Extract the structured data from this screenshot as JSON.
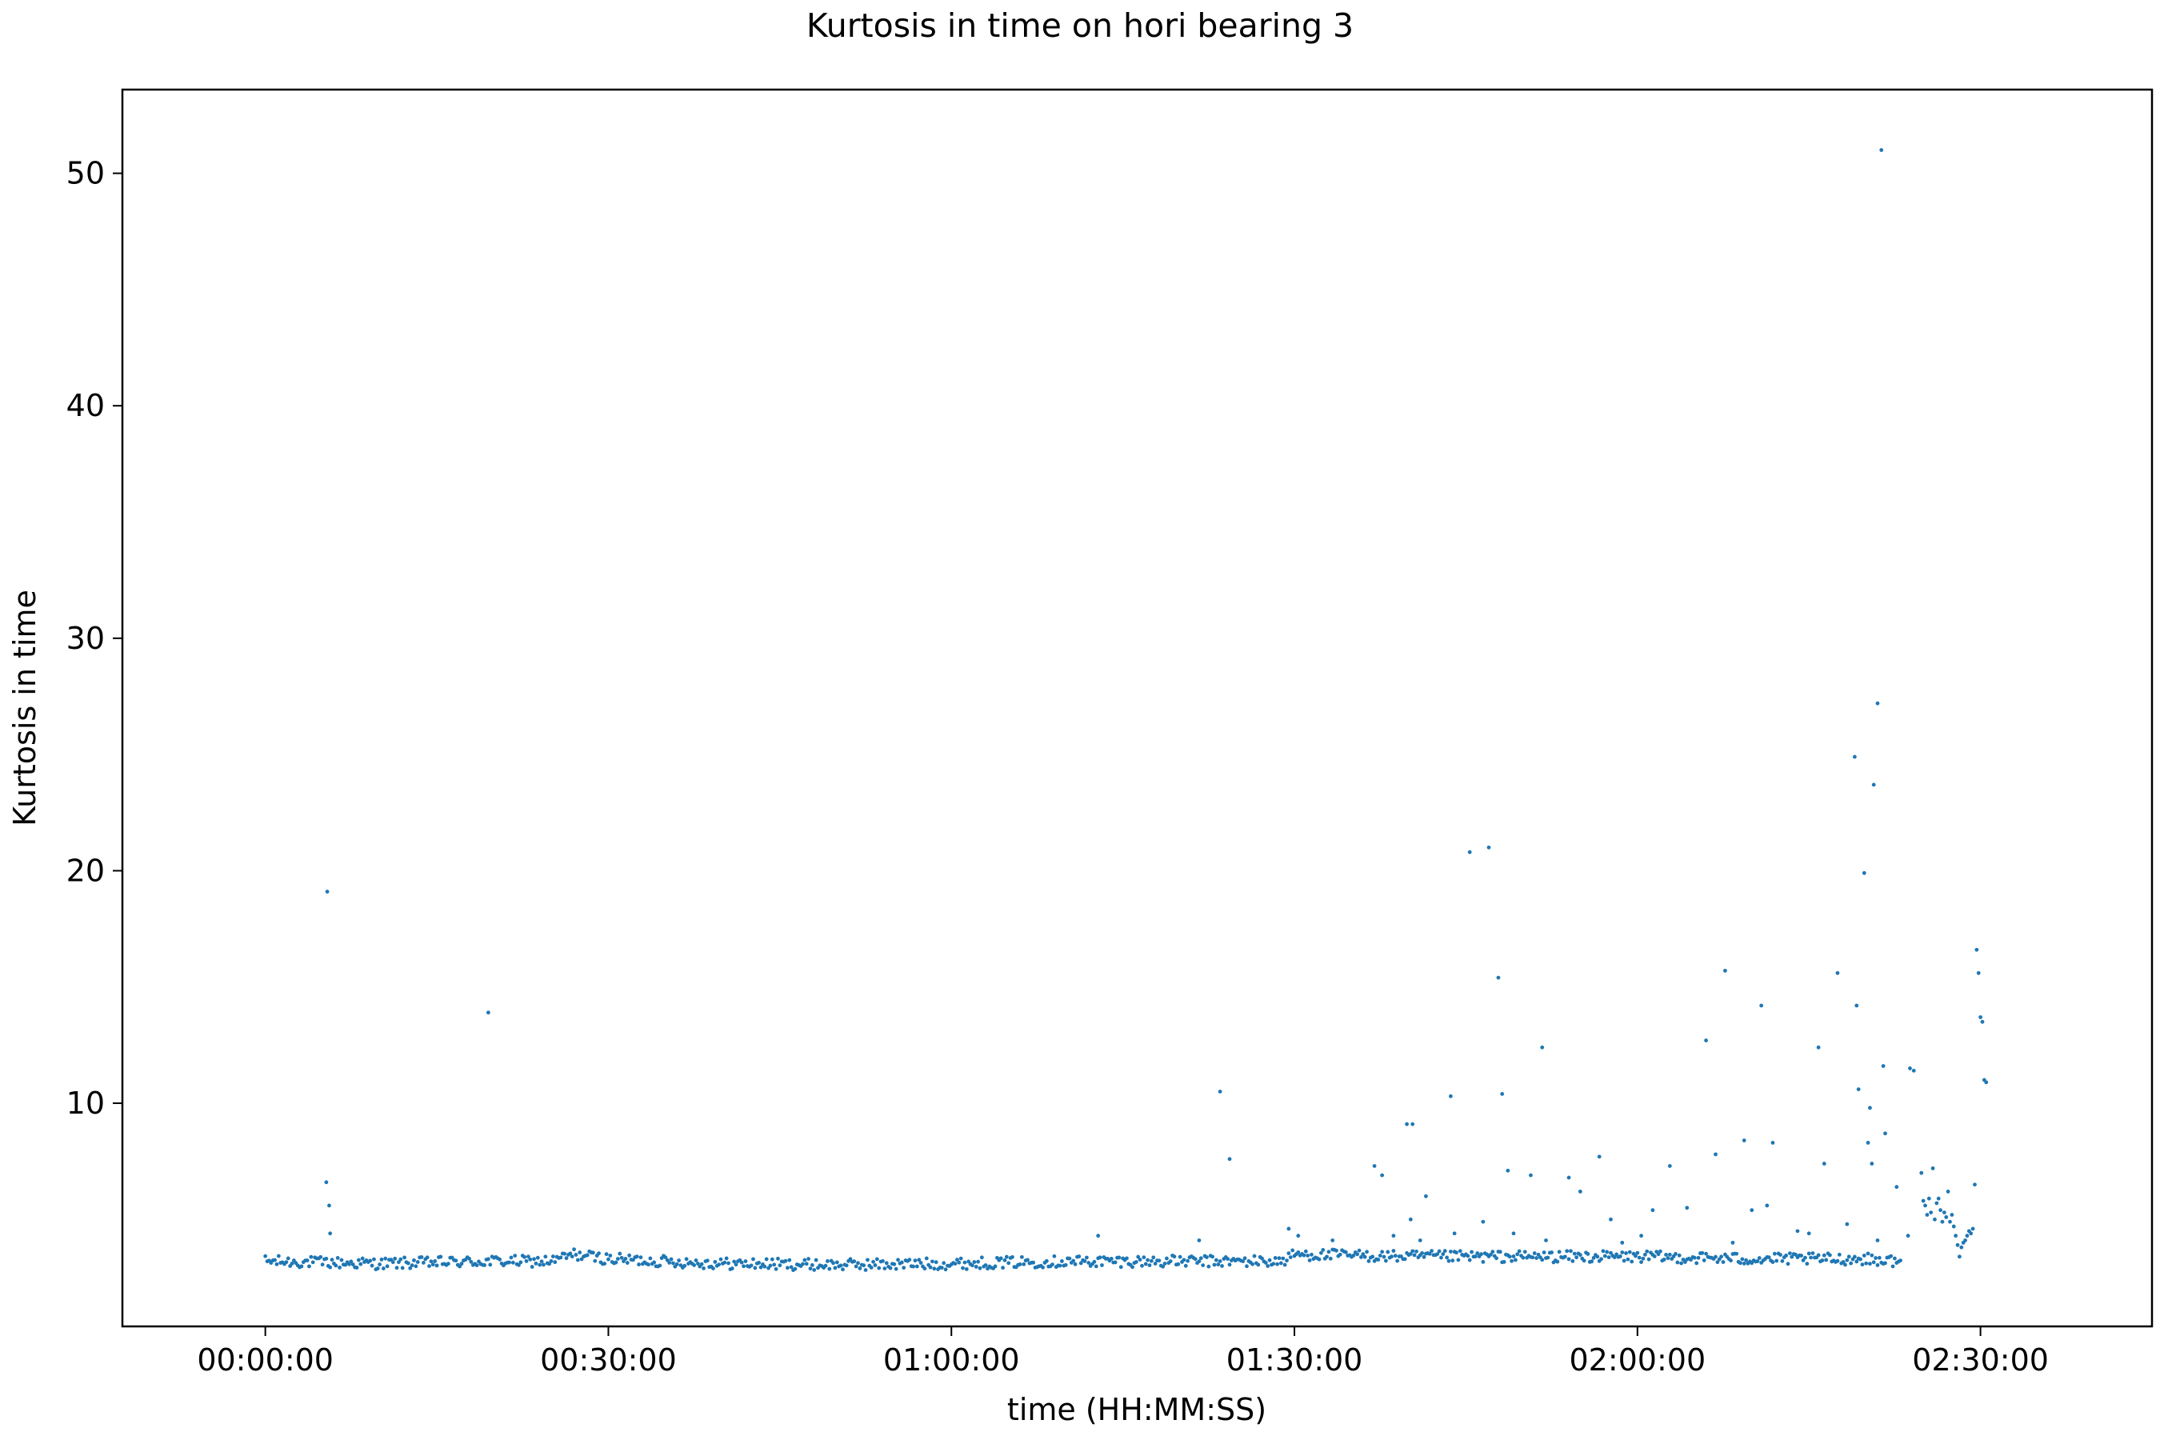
{
  "chart_data": {
    "type": "scatter",
    "title": "Kurtosis in time on hori bearing 3",
    "xlabel": "time (HH:MM:SS)",
    "ylabel": "Kurtosis in time",
    "x_unit": "seconds",
    "xlim": [
      -750,
      9900
    ],
    "ylim": [
      0.4,
      53.6
    ],
    "x_ticks": [
      {
        "value": 0,
        "label": "00:00:00"
      },
      {
        "value": 1800,
        "label": "00:30:00"
      },
      {
        "value": 3600,
        "label": "01:00:00"
      },
      {
        "value": 5400,
        "label": "01:30:00"
      },
      {
        "value": 7200,
        "label": "02:00:00"
      },
      {
        "value": 9000,
        "label": "02:30:00"
      }
    ],
    "y_ticks": [
      {
        "value": 10,
        "label": "10"
      },
      {
        "value": 20,
        "label": "20"
      },
      {
        "value": 30,
        "label": "30"
      },
      {
        "value": 40,
        "label": "40"
      },
      {
        "value": 50,
        "label": "50"
      }
    ],
    "grid": false,
    "legend": "none",
    "series": [
      {
        "color": "#1f77b4",
        "baseline": {
          "x_start": 0,
          "x_end": 8580,
          "x_step": 10,
          "y_profile": [
            [
              0,
              3.2
            ],
            [
              600,
              3.1
            ],
            [
              1200,
              3.2
            ],
            [
              1500,
              3.2
            ],
            [
              1620,
              3.5
            ],
            [
              1800,
              3.3
            ],
            [
              2400,
              3.1
            ],
            [
              3000,
              3.05
            ],
            [
              3600,
              3.1
            ],
            [
              4200,
              3.2
            ],
            [
              4800,
              3.2
            ],
            [
              5340,
              3.2
            ],
            [
              5400,
              3.5
            ],
            [
              6000,
              3.4
            ],
            [
              6600,
              3.4
            ],
            [
              7200,
              3.4
            ],
            [
              7800,
              3.3
            ],
            [
              8400,
              3.3
            ],
            [
              8580,
              3.2
            ]
          ],
          "y_jitter": 0.25
        },
        "points": [
          {
            "x": 325,
            "y": 19.1
          },
          {
            "x": 320,
            "y": 6.6
          },
          {
            "x": 335,
            "y": 5.6
          },
          {
            "x": 340,
            "y": 4.4
          },
          {
            "x": 1170,
            "y": 13.9
          },
          {
            "x": 4370,
            "y": 4.3
          },
          {
            "x": 5010,
            "y": 10.5
          },
          {
            "x": 5060,
            "y": 7.6
          },
          {
            "x": 4900,
            "y": 4.1
          },
          {
            "x": 5370,
            "y": 4.6
          },
          {
            "x": 5420,
            "y": 4.3
          },
          {
            "x": 5600,
            "y": 4.1
          },
          {
            "x": 5820,
            "y": 7.3
          },
          {
            "x": 5860,
            "y": 6.9
          },
          {
            "x": 5920,
            "y": 4.3
          },
          {
            "x": 5990,
            "y": 9.1
          },
          {
            "x": 6020,
            "y": 9.1
          },
          {
            "x": 6010,
            "y": 5.0
          },
          {
            "x": 6060,
            "y": 4.1
          },
          {
            "x": 6090,
            "y": 6.0
          },
          {
            "x": 6220,
            "y": 10.3
          },
          {
            "x": 6240,
            "y": 4.4
          },
          {
            "x": 6320,
            "y": 20.8
          },
          {
            "x": 6420,
            "y": 21.0
          },
          {
            "x": 6390,
            "y": 4.9
          },
          {
            "x": 6470,
            "y": 15.4
          },
          {
            "x": 6490,
            "y": 10.4
          },
          {
            "x": 6520,
            "y": 7.1
          },
          {
            "x": 6550,
            "y": 4.4
          },
          {
            "x": 6640,
            "y": 6.9
          },
          {
            "x": 6700,
            "y": 12.4
          },
          {
            "x": 6720,
            "y": 4.1
          },
          {
            "x": 6840,
            "y": 6.8
          },
          {
            "x": 6900,
            "y": 6.2
          },
          {
            "x": 7000,
            "y": 7.7
          },
          {
            "x": 7060,
            "y": 5.0
          },
          {
            "x": 7120,
            "y": 4.0
          },
          {
            "x": 7220,
            "y": 4.3
          },
          {
            "x": 7280,
            "y": 5.4
          },
          {
            "x": 7370,
            "y": 7.3
          },
          {
            "x": 7460,
            "y": 5.5
          },
          {
            "x": 7560,
            "y": 12.7
          },
          {
            "x": 7610,
            "y": 7.8
          },
          {
            "x": 7660,
            "y": 15.7
          },
          {
            "x": 7700,
            "y": 4.0
          },
          {
            "x": 7760,
            "y": 8.4
          },
          {
            "x": 7800,
            "y": 5.4
          },
          {
            "x": 7850,
            "y": 14.2
          },
          {
            "x": 7880,
            "y": 5.6
          },
          {
            "x": 7910,
            "y": 8.3
          },
          {
            "x": 8040,
            "y": 4.5
          },
          {
            "x": 8100,
            "y": 4.4
          },
          {
            "x": 8150,
            "y": 12.4
          },
          {
            "x": 8180,
            "y": 7.4
          },
          {
            "x": 8250,
            "y": 15.6
          },
          {
            "x": 8300,
            "y": 4.8
          },
          {
            "x": 8340,
            "y": 24.9
          },
          {
            "x": 8350,
            "y": 14.2
          },
          {
            "x": 8360,
            "y": 10.6
          },
          {
            "x": 8390,
            "y": 19.9
          },
          {
            "x": 8420,
            "y": 9.8
          },
          {
            "x": 8410,
            "y": 8.3
          },
          {
            "x": 8430,
            "y": 7.4
          },
          {
            "x": 8440,
            "y": 23.7
          },
          {
            "x": 8460,
            "y": 27.2
          },
          {
            "x": 8490,
            "y": 11.6
          },
          {
            "x": 8500,
            "y": 8.7
          },
          {
            "x": 8480,
            "y": 51.0
          },
          {
            "x": 8460,
            "y": 4.1
          },
          {
            "x": 8560,
            "y": 6.4
          },
          {
            "x": 8630,
            "y": 11.5
          },
          {
            "x": 8650,
            "y": 11.4
          },
          {
            "x": 8620,
            "y": 4.3
          },
          {
            "x": 8690,
            "y": 7.0
          },
          {
            "x": 8700,
            "y": 5.8
          },
          {
            "x": 8710,
            "y": 5.6
          },
          {
            "x": 8720,
            "y": 5.2
          },
          {
            "x": 8730,
            "y": 5.9
          },
          {
            "x": 8740,
            "y": 5.3
          },
          {
            "x": 8750,
            "y": 7.2
          },
          {
            "x": 8760,
            "y": 5.0
          },
          {
            "x": 8770,
            "y": 5.7
          },
          {
            "x": 8780,
            "y": 5.9
          },
          {
            "x": 8790,
            "y": 5.4
          },
          {
            "x": 8800,
            "y": 4.9
          },
          {
            "x": 8810,
            "y": 5.3
          },
          {
            "x": 8820,
            "y": 5.1
          },
          {
            "x": 8830,
            "y": 6.2
          },
          {
            "x": 8840,
            "y": 4.9
          },
          {
            "x": 8850,
            "y": 5.2
          },
          {
            "x": 8860,
            "y": 4.7
          },
          {
            "x": 8870,
            "y": 4.3
          },
          {
            "x": 8880,
            "y": 3.9
          },
          {
            "x": 8890,
            "y": 3.4
          },
          {
            "x": 8900,
            "y": 3.8
          },
          {
            "x": 8910,
            "y": 4.0
          },
          {
            "x": 8920,
            "y": 4.1
          },
          {
            "x": 8930,
            "y": 4.3
          },
          {
            "x": 8940,
            "y": 4.5
          },
          {
            "x": 8950,
            "y": 4.4
          },
          {
            "x": 8960,
            "y": 4.6
          },
          {
            "x": 8970,
            "y": 6.5
          },
          {
            "x": 8980,
            "y": 16.6
          },
          {
            "x": 8990,
            "y": 15.6
          },
          {
            "x": 9000,
            "y": 13.7
          },
          {
            "x": 9010,
            "y": 13.5
          },
          {
            "x": 9020,
            "y": 11.0
          },
          {
            "x": 9030,
            "y": 10.9
          }
        ]
      }
    ]
  }
}
